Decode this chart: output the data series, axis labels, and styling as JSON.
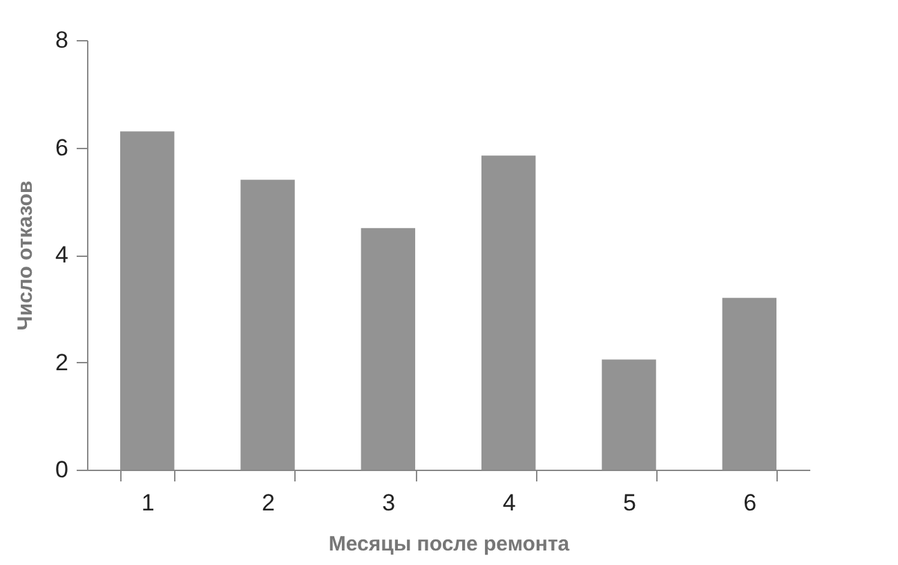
{
  "chart_data": {
    "type": "bar",
    "xlabel": "Месяцы после ремонта",
    "ylabel": "Число отказов",
    "categories": [
      "1",
      "2",
      "3",
      "4",
      "5",
      "6"
    ],
    "values": [
      6.3,
      5.4,
      4.5,
      5.85,
      2.05,
      3.2
    ],
    "color": "#939393",
    "ylim": [
      0,
      8
    ],
    "yticks": [
      0,
      2,
      4,
      6,
      8
    ],
    "grid": false,
    "legend": false
  }
}
